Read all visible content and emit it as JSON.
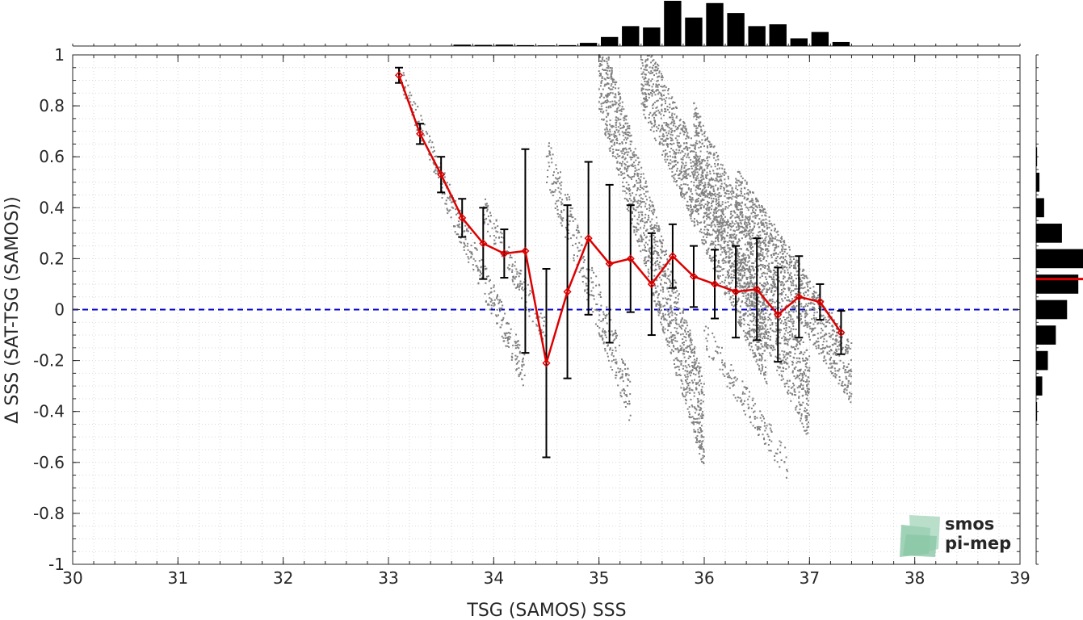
{
  "chart_data": {
    "type": "scatter",
    "xlabel": "TSG (SAMOS) SSS",
    "ylabel": "Δ SSS (SAT-TSG (SAMOS))",
    "xlim": [
      30,
      39
    ],
    "ylim": [
      -1,
      1
    ],
    "xticks": [
      30,
      31,
      32,
      33,
      34,
      35,
      36,
      37,
      38,
      39
    ],
    "yticks": [
      -1,
      -0.8,
      -0.6,
      -0.4,
      -0.2,
      0,
      0.2,
      0.4,
      0.6,
      0.8,
      1
    ],
    "grid": true,
    "zero_line": {
      "y": 0,
      "color": "#0000cc",
      "style": "dashed"
    },
    "binned_mean": {
      "color": "#dd0000",
      "x": [
        33.1,
        33.3,
        33.5,
        33.7,
        33.9,
        34.1,
        34.3,
        34.5,
        34.7,
        34.9,
        35.1,
        35.3,
        35.5,
        35.7,
        35.9,
        36.1,
        36.3,
        36.5,
        36.7,
        36.9,
        37.1,
        37.3
      ],
      "y": [
        0.92,
        0.69,
        0.53,
        0.36,
        0.26,
        0.22,
        0.23,
        -0.21,
        0.07,
        0.28,
        0.18,
        0.2,
        0.1,
        0.21,
        0.13,
        0.1,
        0.07,
        0.08,
        -0.02,
        0.05,
        0.03,
        -0.09
      ],
      "std": [
        0.03,
        0.04,
        0.07,
        0.075,
        0.14,
        0.095,
        0.4,
        0.37,
        0.34,
        0.3,
        0.31,
        0.21,
        0.2,
        0.125,
        0.12,
        0.135,
        0.18,
        0.2,
        0.185,
        0.16,
        0.07,
        0.085
      ]
    },
    "scatter_color": "#808080",
    "scatter_clusters": [
      {
        "x": [
          33.1,
          33.6
        ],
        "y": [
          0.93,
          0.42
        ],
        "spread": 0.05,
        "n": 90
      },
      {
        "x": [
          33.5,
          34.3
        ],
        "y": [
          0.5,
          -0.25
        ],
        "spread": 0.07,
        "n": 260
      },
      {
        "x": [
          33.9,
          34.5
        ],
        "y": [
          0.4,
          -0.1
        ],
        "spread": 0.06,
        "n": 150
      },
      {
        "x": [
          34.5,
          35.3
        ],
        "y": [
          0.6,
          -0.35
        ],
        "spread": 0.1,
        "n": 320
      },
      {
        "x": [
          35.0,
          36.0
        ],
        "y": [
          0.95,
          -0.45
        ],
        "spread": 0.18,
        "n": 1300
      },
      {
        "x": [
          35.4,
          36.6
        ],
        "y": [
          0.95,
          -0.15
        ],
        "spread": 0.16,
        "n": 1400
      },
      {
        "x": [
          35.9,
          37.0
        ],
        "y": [
          0.65,
          -0.35
        ],
        "spread": 0.17,
        "n": 1300
      },
      {
        "x": [
          36.3,
          37.4
        ],
        "y": [
          0.45,
          -0.25
        ],
        "spread": 0.12,
        "n": 1000
      },
      {
        "x": [
          36.0,
          36.8
        ],
        "y": [
          -0.1,
          -0.62
        ],
        "spread": 0.06,
        "n": 160
      }
    ],
    "top_histogram": {
      "bin_centers": [
        33.7,
        33.9,
        34.1,
        34.3,
        34.5,
        34.7,
        34.9,
        35.1,
        35.3,
        35.5,
        35.7,
        35.9,
        36.1,
        36.3,
        36.5,
        36.7,
        36.9,
        37.1,
        37.3
      ],
      "relative_counts": [
        0.03,
        0.025,
        0.03,
        0.02,
        0.015,
        0.02,
        0.07,
        0.2,
        0.44,
        0.41,
        1.0,
        0.63,
        0.95,
        0.73,
        0.44,
        0.48,
        0.17,
        0.31,
        0.09
      ]
    },
    "right_histogram": {
      "bin_centers": [
        0.6,
        0.5,
        0.4,
        0.3,
        0.2,
        0.1,
        0.0,
        -0.1,
        -0.2,
        -0.3,
        -0.4
      ],
      "relative_counts": [
        0.02,
        0.07,
        0.17,
        0.55,
        1.0,
        0.9,
        0.66,
        0.42,
        0.25,
        0.13,
        0.02
      ],
      "mean_line_y": 0.12,
      "mean_line_color": "#dd0000"
    }
  },
  "logo": {
    "line1": "smos",
    "line2": "pi-mep",
    "color": "#7fc4a0"
  }
}
